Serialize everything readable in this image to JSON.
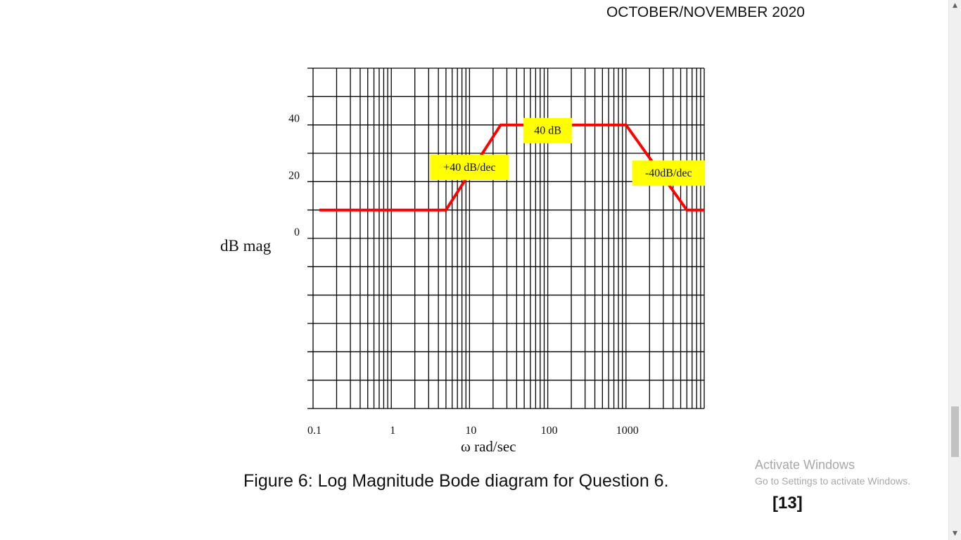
{
  "header": {
    "date": "OCTOBER/NOVEMBER 2020"
  },
  "figure": {
    "caption": "Figure 6: Log Magnitude Bode diagram for Question 6.",
    "marks": "[13]"
  },
  "watermark": {
    "line1": "Activate Windows",
    "line2": "Go to Settings to activate Windows."
  },
  "colors": {
    "curve": "#ff0000",
    "label_bg": "#ffff00",
    "grid": "#000000"
  },
  "icons": [
    "scroll-up-arrow-icon",
    "scroll-down-arrow-icon"
  ],
  "chart_data": {
    "type": "line",
    "x_scale": "log",
    "xlabel": "ω rad/sec",
    "ylabel": "dB mag",
    "xlim": [
      0.1,
      10000
    ],
    "ylim": [
      -60,
      60
    ],
    "x_ticks": [
      {
        "value": 0.1,
        "label": "0.1"
      },
      {
        "value": 1,
        "label": "1"
      },
      {
        "value": 10,
        "label": "10"
      },
      {
        "value": 100,
        "label": "100"
      },
      {
        "value": 1000,
        "label": "1000"
      }
    ],
    "y_ticks": [
      {
        "value": 40,
        "label": "40"
      },
      {
        "value": 20,
        "label": "20"
      },
      {
        "value": 0,
        "label": "0"
      }
    ],
    "grid": true,
    "series": [
      {
        "x": [
          0.12,
          5,
          25,
          1000,
          6000,
          10000
        ],
        "y": [
          10,
          10,
          40,
          40,
          10,
          10
        ]
      }
    ],
    "annotations": [
      {
        "text": "+40 dB/dec",
        "x": 10,
        "y": 25
      },
      {
        "text": "40 dB",
        "x": 100,
        "y": 38
      },
      {
        "text": "-40dB/dec",
        "x": 3500,
        "y": 23
      }
    ]
  }
}
